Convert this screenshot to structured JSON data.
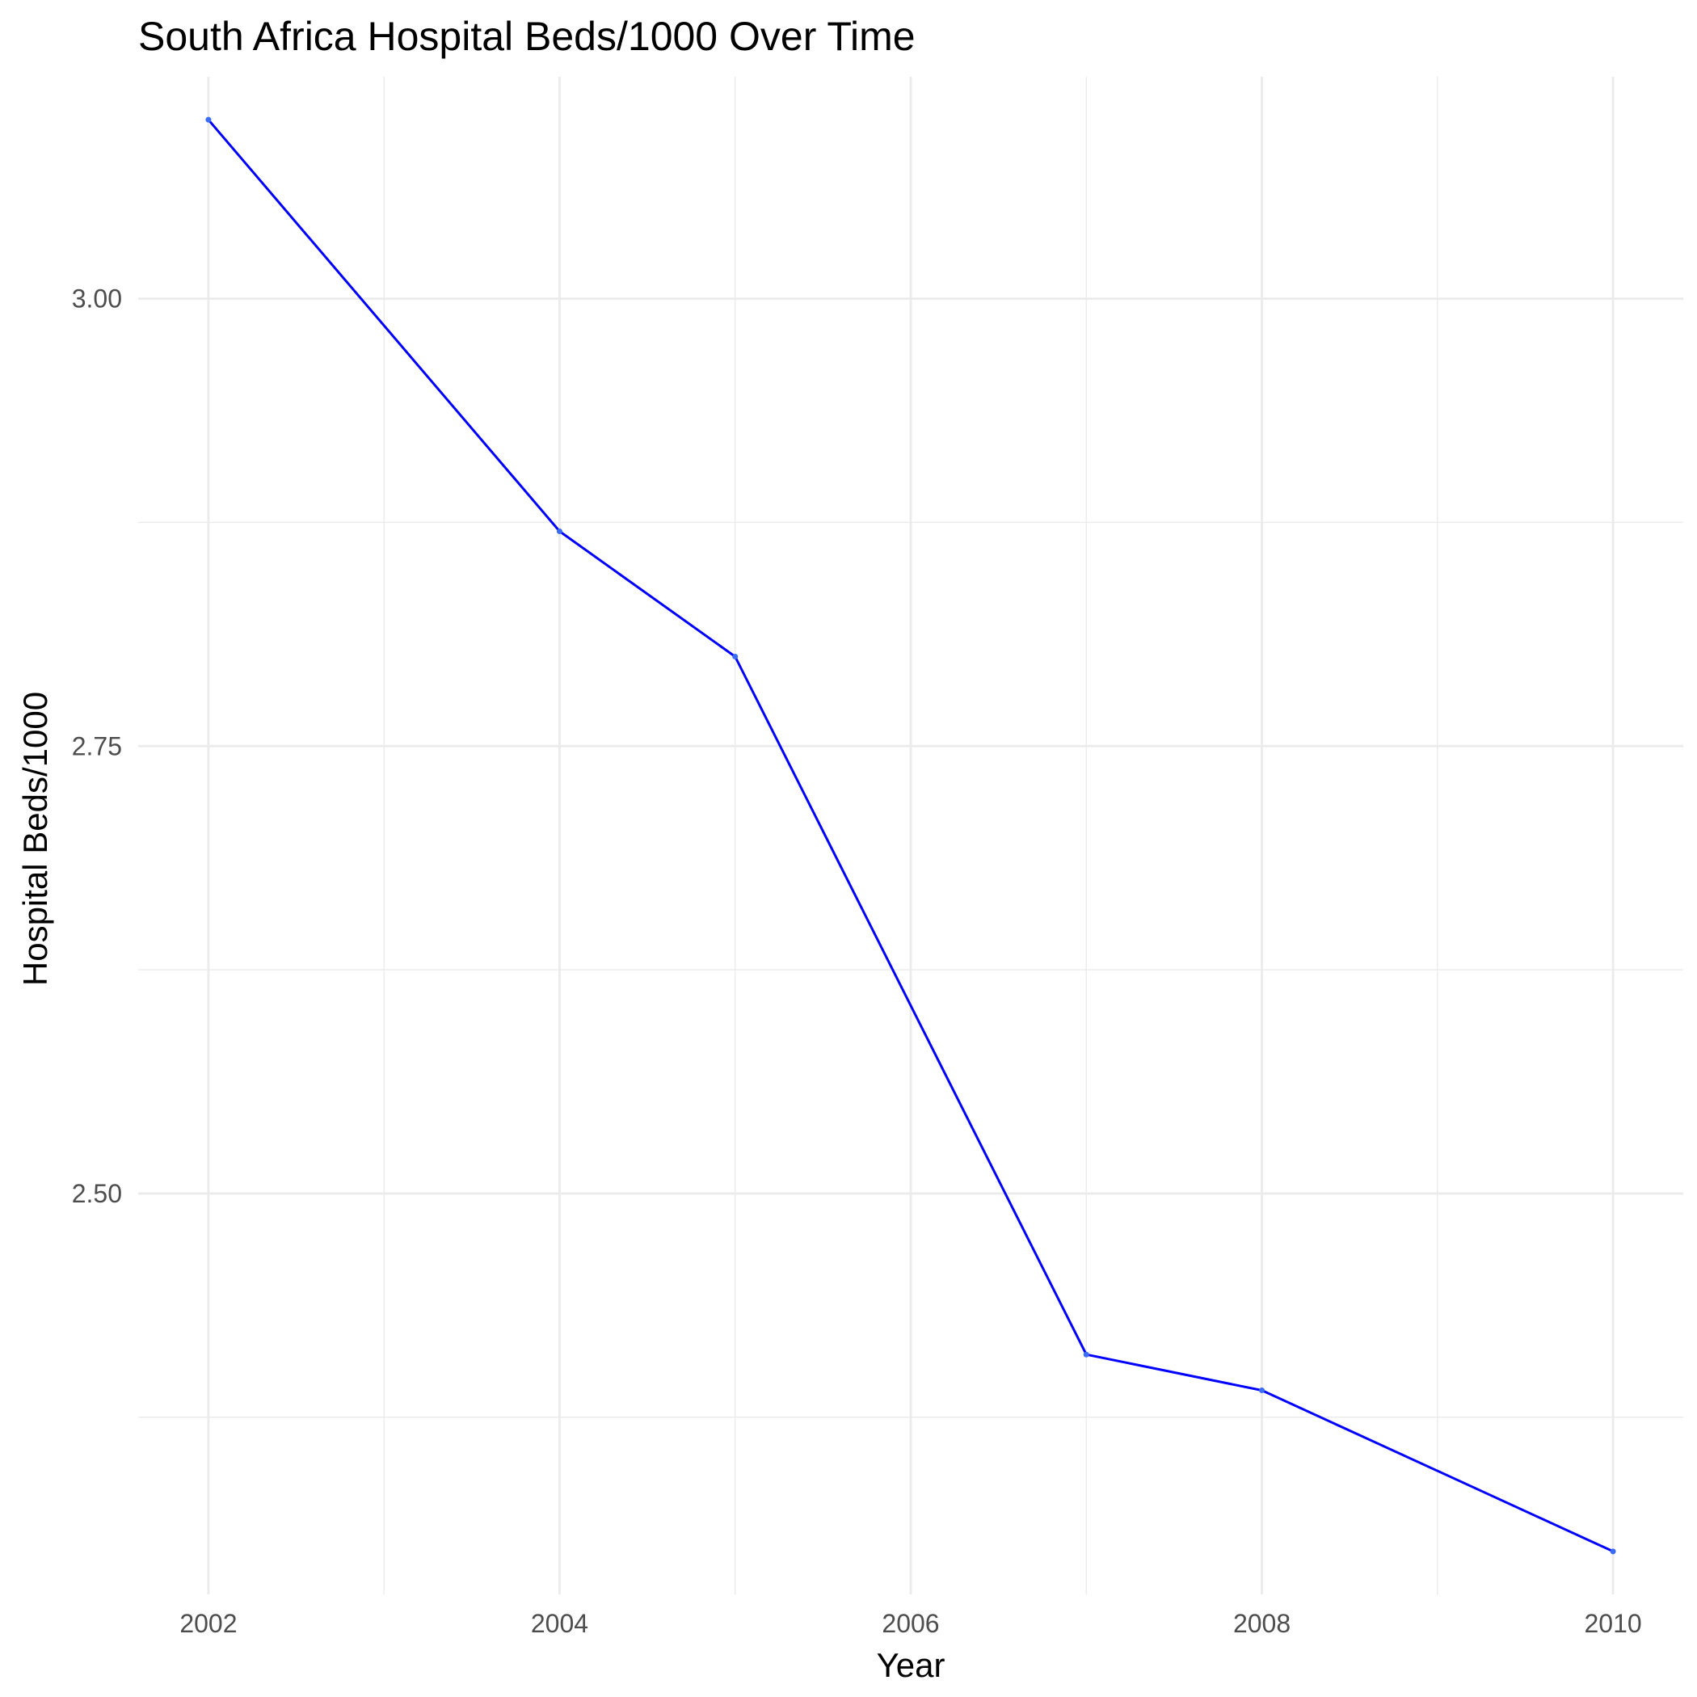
{
  "chart_data": {
    "type": "line",
    "title": "South Africa Hospital Beds/1000 Over Time",
    "xlabel": "Year",
    "ylabel": "Hospital Beds/1000",
    "x": [
      2002,
      2004,
      2005,
      2007,
      2008,
      2010
    ],
    "series": [
      {
        "values": [
          3.1,
          2.87,
          2.8,
          2.41,
          2.39,
          2.3
        ]
      }
    ],
    "xlim": [
      2001.6,
      2010.4
    ],
    "ylim": [
      2.276,
      3.124
    ],
    "x_ticks": [
      2002,
      2004,
      2006,
      2008,
      2010
    ],
    "x_tick_labels": [
      "2002",
      "2004",
      "2006",
      "2008",
      "2010"
    ],
    "x_minor_ticks": [
      2003,
      2005,
      2007,
      2009
    ],
    "y_ticks": [
      2.5,
      2.75,
      3.0
    ],
    "y_tick_labels": [
      "2.50",
      "2.75",
      "3.00"
    ],
    "y_minor_ticks": [
      2.375,
      2.625,
      2.875,
      3.125
    ],
    "grid": true,
    "legend": "none",
    "colors": {
      "line": "#0000ff",
      "point": "#3b6cf6",
      "grid": "#ebebeb",
      "background": "#ffffff"
    }
  }
}
